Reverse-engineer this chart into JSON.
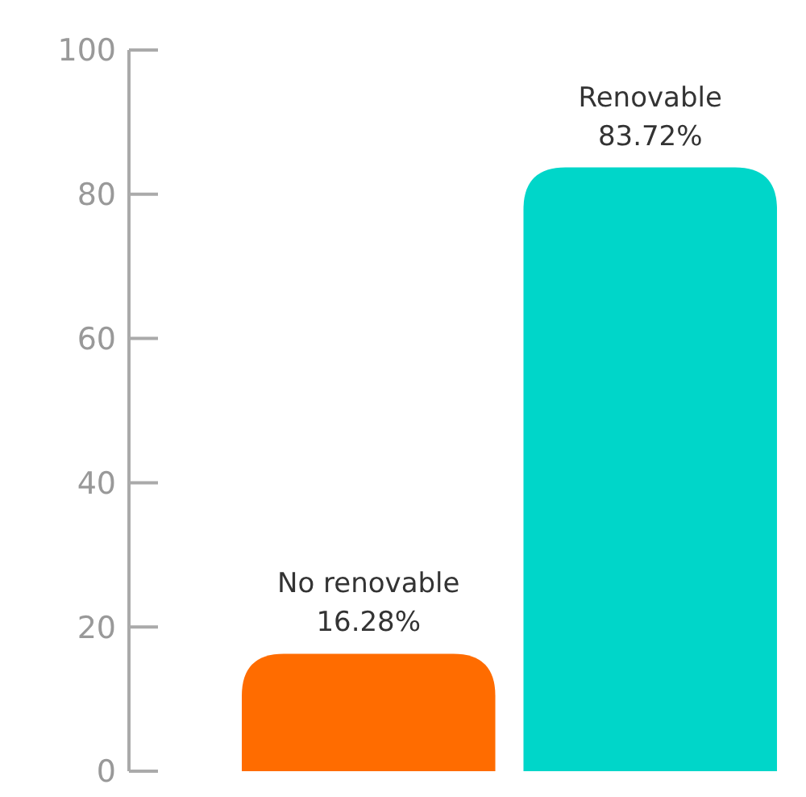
{
  "chart_data": {
    "type": "bar",
    "categories": [
      "No renovable",
      "Renovable"
    ],
    "values": [
      16.28,
      83.72
    ],
    "colors": [
      "#ff6c00",
      "#00d6c9"
    ],
    "value_labels": [
      "16.28%",
      "83.72%"
    ],
    "ylim": [
      0,
      100
    ],
    "yticks": [
      0,
      20,
      40,
      60,
      80,
      100
    ]
  }
}
